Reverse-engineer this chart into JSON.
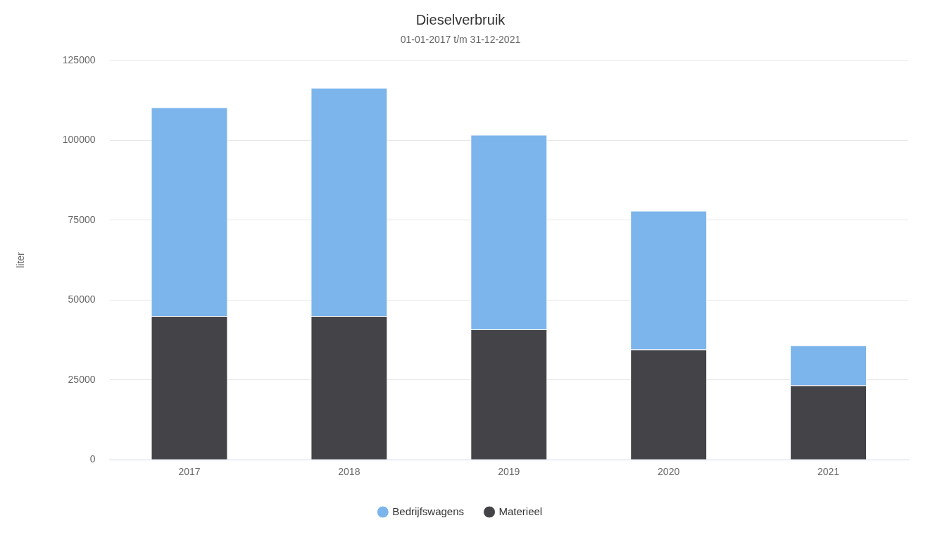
{
  "chart_data": {
    "type": "bar",
    "title": "Dieselverbruik",
    "subtitle": "01-01-2017 t/m 31-12-2021",
    "ylabel": "liter",
    "categories": [
      "2017",
      "2018",
      "2019",
      "2020",
      "2021"
    ],
    "series": [
      {
        "name": "Materieel",
        "color": "#434348",
        "values": [
          45000,
          45000,
          40800,
          34500,
          23300
        ]
      },
      {
        "name": "Bedrijfswagens",
        "color": "#7cb5ec",
        "values": [
          65300,
          71400,
          60900,
          43400,
          12500
        ]
      }
    ],
    "stacked": true,
    "ylim": [
      0,
      125000
    ],
    "yticks": [
      0,
      25000,
      50000,
      75000,
      100000,
      125000
    ],
    "grid": "y",
    "legend": "bottom"
  }
}
